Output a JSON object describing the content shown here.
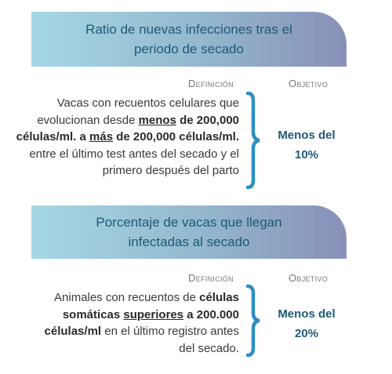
{
  "sections": [
    {
      "title": [
        "Ratio de nuevas infecciones tras el",
        "periodo de secado"
      ],
      "definition_label": "Definición",
      "objective_label": "Objetivo",
      "definition": [
        [
          "Vacas con recuentos celulares que"
        ],
        [
          "evolucionan desde ",
          "menos",
          " de 200,000"
        ],
        [
          "células/ml. a ",
          "más",
          " de 200,000 células/ml."
        ],
        [
          "entre el último test antes del secado y el"
        ],
        [
          "primero después del parto"
        ]
      ],
      "objective": [
        "Menos del",
        "10%"
      ]
    },
    {
      "title": [
        "Porcentaje de vacas que llegan",
        "infectadas al secado"
      ],
      "definition_label": "Definición",
      "objective_label": "Objetivo",
      "definition": [
        [
          "Animales con recuentos de ",
          "células"
        ],
        [
          "somáticas ",
          "superiores",
          " a 200.000"
        ],
        [
          "células/ml",
          " en el último registro antes"
        ],
        [
          "del secado."
        ]
      ],
      "objective": [
        "Menos del",
        "20%"
      ]
    }
  ]
}
